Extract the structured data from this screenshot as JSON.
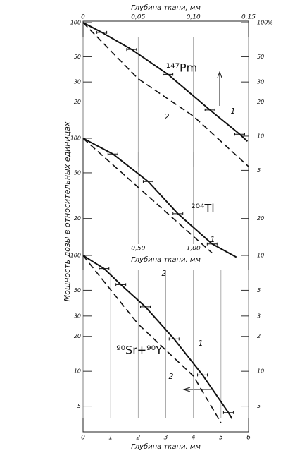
{
  "y_label": "Мощность дозы в относительных единицах",
  "chart_data": [
    {
      "type": "line",
      "title": "¹⁴⁷Pm",
      "x_label": "Глубина ткани, мм",
      "xlim": [
        0,
        0.15
      ],
      "xticks": [
        0,
        {
          "value": 0.05,
          "label": "0,05"
        },
        {
          "value": 0.1,
          "label": "0,10"
        },
        {
          "value": 0.15,
          "label": "0,15"
        }
      ],
      "ylim": [
        4,
        100
      ],
      "log_y": true,
      "grid": true,
      "yticks": [
        100,
        50,
        30,
        20
      ],
      "y2ticks": [
        {
          "value": 100,
          "label": "100%"
        },
        50,
        30,
        20,
        10,
        5
      ],
      "series": [
        {
          "name": "1",
          "color": "#111",
          "dash": "solid",
          "x": [
            0,
            0.017,
            0.044,
            0.077,
            0.115,
            0.142,
            0.149
          ],
          "values": [
            100,
            82,
            58,
            35,
            17,
            10.4,
            9
          ]
        },
        {
          "name": "2",
          "color": "#111",
          "dash": "dashed",
          "x": [
            0,
            0.05,
            0.1,
            0.15
          ],
          "values": [
            100,
            32,
            15,
            5.4
          ]
        }
      ]
    },
    {
      "type": "line",
      "title": "²⁰⁴Tl",
      "x_label": "Глубина ткани, мм",
      "xlim": [
        0,
        1.5
      ],
      "xticks": [
        {
          "value": 0.5,
          "label": "0,50"
        },
        {
          "value": 1.0,
          "label": "1,00"
        }
      ],
      "ylim": [
        9,
        100
      ],
      "log_y": true,
      "grid": true,
      "yticks": [
        100,
        50,
        20
      ],
      "y2ticks": [
        20
      ],
      "series": [
        {
          "name": "1",
          "color": "#111",
          "dash": "solid",
          "x": [
            0,
            0.27,
            0.59,
            0.86,
            1.17,
            1.39
          ],
          "values": [
            100,
            73,
            42,
            22,
            12,
            9.2
          ]
        },
        {
          "name": "2",
          "color": "#111",
          "dash": "dashed",
          "x": [
            0,
            1.17
          ],
          "values": [
            100,
            10
          ]
        }
      ]
    },
    {
      "type": "line",
      "title": "⁹⁰Sr+⁹⁰Y",
      "x_label": "Глубина ткани, мм",
      "xlim": [
        0,
        6
      ],
      "xticks": [
        0,
        1,
        2,
        3,
        4,
        5,
        6
      ],
      "ylim": [
        3,
        100
      ],
      "log_y": true,
      "grid": true,
      "yticks": [
        100,
        50,
        30,
        20,
        10,
        5
      ],
      "y2ticks": [
        {
          "value": 100,
          "label": "10"
        },
        {
          "value": 50,
          "label": "5"
        },
        {
          "value": 30,
          "label": "3"
        },
        {
          "value": 20,
          "label": "2"
        },
        10,
        5
      ],
      "series": [
        {
          "name": "1",
          "color": "#111",
          "dash": "solid",
          "x": [
            0,
            0.76,
            1.37,
            2.26,
            3.3,
            4.33,
            5.27,
            5.4
          ],
          "values": [
            100,
            77,
            56,
            36,
            19,
            9.3,
            4.4,
            3.9
          ]
        },
        {
          "name": "2",
          "color": "#111",
          "dash": "dashed",
          "x": [
            0,
            2,
            4,
            5
          ],
          "values": [
            100,
            25.5,
            9.1,
            3.6
          ]
        }
      ]
    }
  ]
}
